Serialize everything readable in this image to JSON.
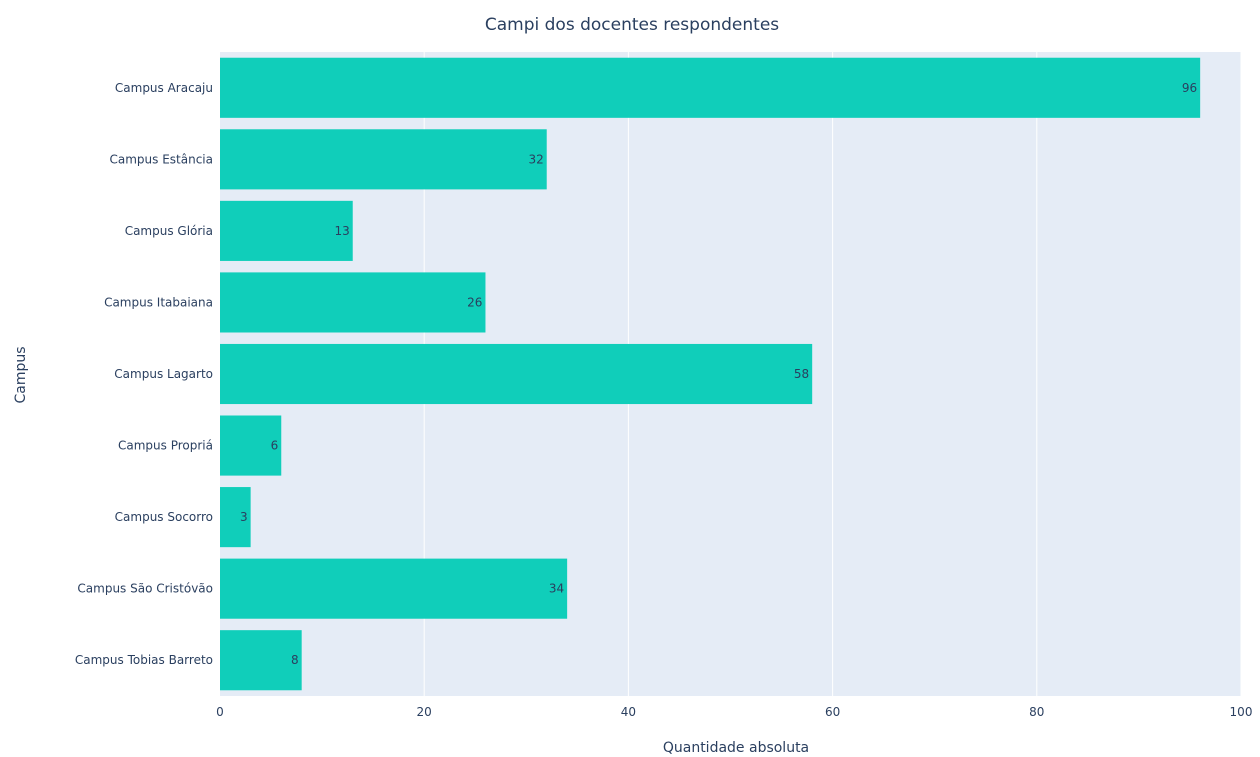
{
  "chart_data": {
    "type": "bar",
    "orientation": "horizontal",
    "title": "Campi dos docentes respondentes",
    "xlabel": "Quantidade absoluta",
    "ylabel": "Campus",
    "categories": [
      "Campus Aracaju",
      "Campus Estância",
      "Campus Glória",
      "Campus Itabaiana",
      "Campus Lagarto",
      "Campus Propriá",
      "Campus Socorro",
      "Campus São Cristóvão",
      "Campus Tobias Barreto"
    ],
    "values": [
      96,
      32,
      13,
      26,
      58,
      6,
      3,
      34,
      8
    ],
    "xlim": [
      0,
      100
    ],
    "xticks": [
      0,
      20,
      40,
      60,
      80,
      100
    ],
    "grid": true,
    "colors": {
      "bar": "#10ceba",
      "plot_bg": "#e5ecf6",
      "grid": "#ffffff",
      "text": "#2a3f5f"
    }
  }
}
